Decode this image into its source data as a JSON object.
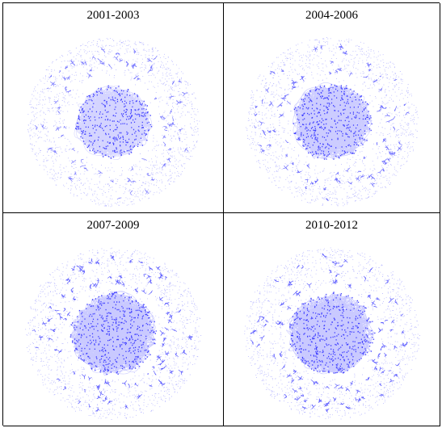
{
  "panels": [
    {
      "title": "2001-2003",
      "density": 0.55
    },
    {
      "title": "2004-2006",
      "density": 0.75
    },
    {
      "title": "2007-2009",
      "density": 0.95
    },
    {
      "title": "2010-2012",
      "density": 0.95
    }
  ],
  "colors": {
    "edge": "#0000ff",
    "node": "#3a3aff",
    "border": "#000000"
  }
}
